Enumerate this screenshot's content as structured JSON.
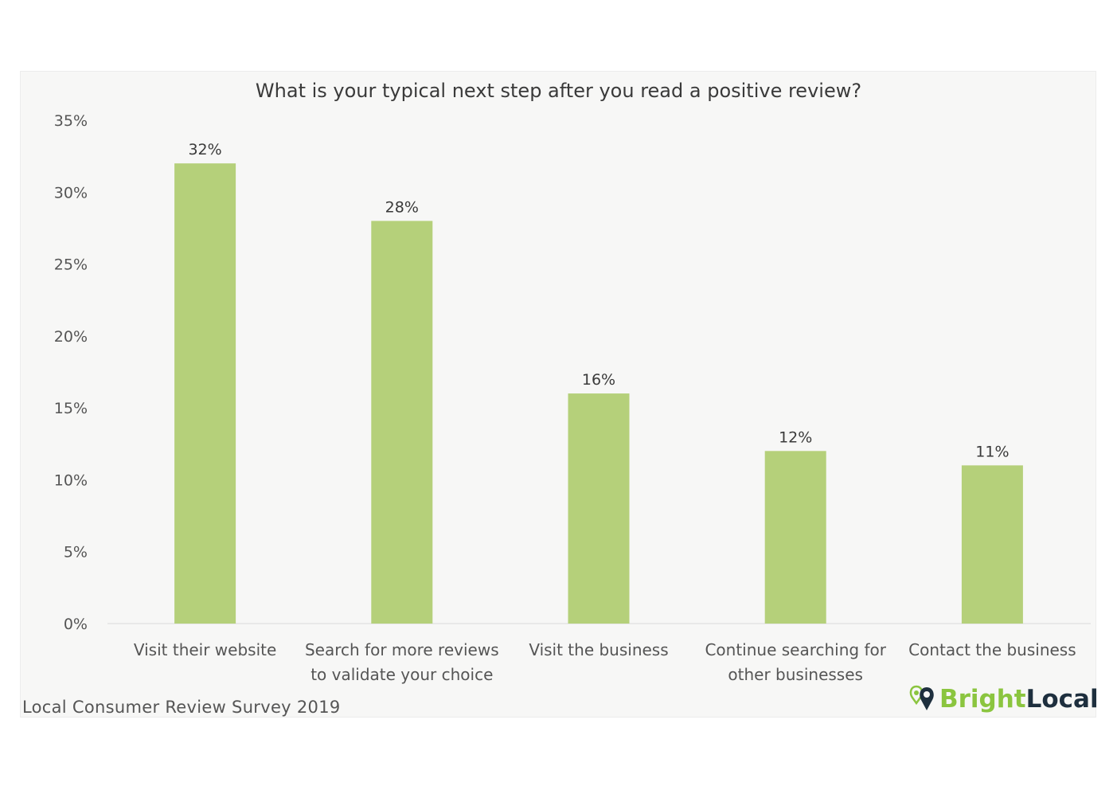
{
  "chart_data": {
    "type": "bar",
    "title": "What is your typical next step after you read a positive review?",
    "categories": [
      [
        "Visit their website"
      ],
      [
        "Search for more reviews",
        "to validate your choice"
      ],
      [
        "Visit the business"
      ],
      [
        "Continue searching for",
        "other businesses"
      ],
      [
        "Contact the business"
      ]
    ],
    "values": [
      32,
      28,
      16,
      12,
      11
    ],
    "data_labels": [
      "32%",
      "28%",
      "16%",
      "12%",
      "11%"
    ],
    "yticks": [
      "0%",
      "5%",
      "10%",
      "15%",
      "20%",
      "25%",
      "30%",
      "35%"
    ],
    "ylim": [
      0,
      35
    ],
    "xlabel": "",
    "ylabel": "",
    "grid": false,
    "bar_color": "#b5d07a"
  },
  "footer": {
    "source": "Local Consumer Review Survey 2019",
    "brand_part1": "Bright",
    "brand_part2": "Local"
  }
}
